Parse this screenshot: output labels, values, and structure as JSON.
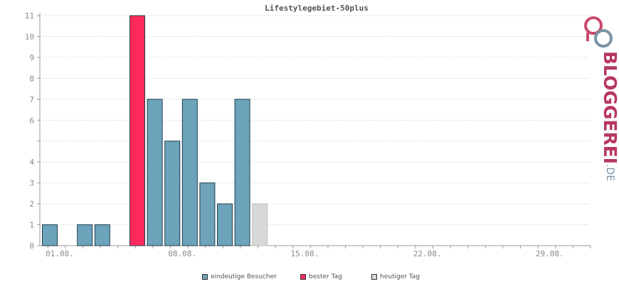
{
  "chart_data": {
    "type": "bar",
    "title": "Lifestylegebiet-50plus",
    "ylim": [
      0,
      11
    ],
    "y_ticks": [
      0,
      1,
      2,
      3,
      4,
      6,
      7,
      8,
      9,
      10,
      11
    ],
    "x_tick_labels": [
      "01.08.",
      "08.08.",
      "15.08.",
      "22.08.",
      "29.08."
    ],
    "x_tick_days": [
      1,
      8,
      15,
      22,
      29
    ],
    "days": [
      1,
      2,
      3,
      4,
      5,
      6,
      7,
      8,
      9,
      10,
      11,
      12,
      13
    ],
    "values": [
      1,
      0,
      1,
      1,
      0,
      11,
      7,
      5,
      7,
      3,
      2,
      7,
      2
    ],
    "series_kind": [
      "normal",
      "normal",
      "normal",
      "normal",
      "normal",
      "best",
      "normal",
      "normal",
      "normal",
      "normal",
      "normal",
      "normal",
      "today"
    ],
    "grid": true,
    "legend_position": "bottom-center",
    "legend": [
      {
        "label": "eindeutige Besucher",
        "color": "#6da3bb"
      },
      {
        "label": "bester Tag",
        "color": "#ff2a5b"
      },
      {
        "label": "heutiger Tag",
        "color": "#d8d8d8"
      }
    ],
    "colors": {
      "normal": "#6da3bb",
      "best": "#ff2a5b",
      "today": "#d8d8d8"
    }
  },
  "logo": {
    "main": "BLOGGEREI",
    "tld": ".DE"
  }
}
